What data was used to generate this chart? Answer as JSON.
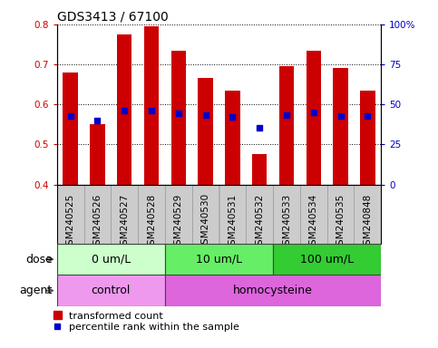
{
  "title": "GDS3413 / 67100",
  "samples": [
    "GSM240525",
    "GSM240526",
    "GSM240527",
    "GSM240528",
    "GSM240529",
    "GSM240530",
    "GSM240531",
    "GSM240532",
    "GSM240533",
    "GSM240534",
    "GSM240535",
    "GSM240848"
  ],
  "transformed_count": [
    0.68,
    0.55,
    0.775,
    0.795,
    0.733,
    0.665,
    0.635,
    0.475,
    0.695,
    0.733,
    0.692,
    0.635
  ],
  "percentile_rank": [
    0.57,
    0.56,
    0.585,
    0.585,
    0.578,
    0.573,
    0.568,
    0.542,
    0.573,
    0.58,
    0.572,
    0.57
  ],
  "bar_bottom": 0.4,
  "ylim_left": [
    0.4,
    0.8
  ],
  "ylim_right": [
    0.0,
    1.0
  ],
  "yticks_left": [
    0.4,
    0.5,
    0.6,
    0.7,
    0.8
  ],
  "yticks_right": [
    0.0,
    0.25,
    0.5,
    0.75,
    1.0
  ],
  "ytick_labels_right": [
    "0",
    "25",
    "50",
    "75",
    "100%"
  ],
  "bar_color": "#cc0000",
  "dot_color": "#0000cc",
  "bar_width": 0.55,
  "dose_groups": [
    {
      "label": "0 um/L",
      "start": 0,
      "end": 4,
      "color": "#ccffcc"
    },
    {
      "label": "10 um/L",
      "start": 4,
      "end": 8,
      "color": "#66ee66"
    },
    {
      "label": "100 um/L",
      "start": 8,
      "end": 12,
      "color": "#33cc33"
    }
  ],
  "agent_groups": [
    {
      "label": "control",
      "start": 0,
      "end": 4,
      "color": "#ee99ee"
    },
    {
      "label": "homocysteine",
      "start": 4,
      "end": 12,
      "color": "#dd66dd"
    }
  ],
  "dose_label": "dose",
  "agent_label": "agent",
  "legend_bar_label": "transformed count",
  "legend_dot_label": "percentile rank within the sample",
  "axis_label_color_left": "#cc0000",
  "axis_label_color_right": "#0000cc",
  "xtick_bg_color": "#cccccc",
  "title_fontsize": 10,
  "tick_fontsize": 7.5,
  "legend_fontsize": 8,
  "row_label_fontsize": 9
}
